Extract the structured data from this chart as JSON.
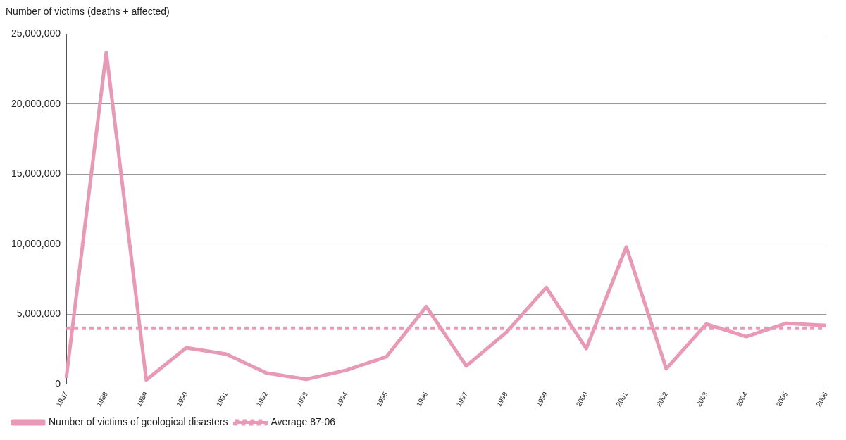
{
  "chart_data": {
    "type": "line",
    "ylabel": "Number of victims (deaths + affected)",
    "categories": [
      "1987",
      "1988",
      "1989",
      "1990",
      "1991",
      "1992",
      "1993",
      "1994",
      "1995",
      "1996",
      "1997",
      "1998",
      "1999",
      "2000",
      "2001",
      "2002",
      "2003",
      "2004",
      "2005",
      "2006"
    ],
    "series": [
      {
        "name": "Number of victims of geological disasters",
        "color": "#e899b5",
        "line_style": "solid",
        "values": [
          450000,
          23700000,
          300000,
          2600000,
          2150000,
          800000,
          350000,
          1000000,
          1950000,
          5550000,
          1300000,
          3700000,
          6900000,
          2550000,
          9800000,
          1100000,
          4300000,
          3400000,
          4350000,
          4200000
        ]
      },
      {
        "name": "Average 87-06",
        "color": "#e899b5",
        "line_style": "dotted",
        "values": [
          4000000,
          4000000,
          4000000,
          4000000,
          4000000,
          4000000,
          4000000,
          4000000,
          4000000,
          4000000,
          4000000,
          4000000,
          4000000,
          4000000,
          4000000,
          4000000,
          4000000,
          4000000,
          4000000,
          4000000
        ]
      }
    ],
    "ylim": [
      0,
      25000000
    ],
    "yticks": [
      0,
      {
        "value": 5000000,
        "label": "5,000,000"
      },
      {
        "value": 10000000,
        "label": "10,000,000"
      },
      {
        "value": 15000000,
        "label": "15,000,000"
      },
      {
        "value": 20000000,
        "label": "20,000,000"
      },
      {
        "value": 25000000,
        "label": "25,000,000"
      }
    ],
    "grid": "y",
    "legend": "bottom left",
    "marker": "none"
  }
}
